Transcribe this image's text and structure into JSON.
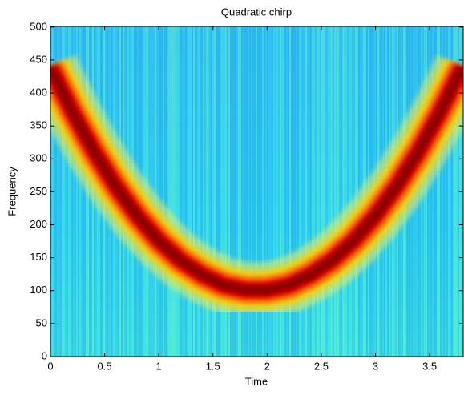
{
  "chart_data": {
    "type": "spectrogram",
    "title": "Quadratic chirp",
    "x_label": "Time",
    "y_label": "Frequency",
    "x": [
      0,
      0.2,
      0.4,
      0.6,
      0.8,
      1.0,
      1.2,
      1.4,
      1.6,
      1.8,
      2.0,
      2.2,
      2.4,
      2.6,
      2.8,
      3.0,
      3.2,
      3.4,
      3.6,
      3.8
    ],
    "series": [
      {
        "name": "Chirp ridge",
        "color": "#8b0000",
        "values": [
          439,
          372,
          312,
          259,
          214,
          176,
          146,
          124,
          108,
          101,
          101,
          108,
          124,
          146,
          176,
          214,
          259,
          312,
          372,
          439
        ]
      }
    ],
    "xlim": [
      0,
      3.81
    ],
    "ylim": [
      0,
      501
    ],
    "xticks": [
      0,
      0.5,
      1,
      1.5,
      2,
      2.5,
      3,
      3.5
    ],
    "yticks": [
      0,
      50,
      100,
      150,
      200,
      250,
      300,
      350,
      400,
      450,
      500
    ]
  }
}
